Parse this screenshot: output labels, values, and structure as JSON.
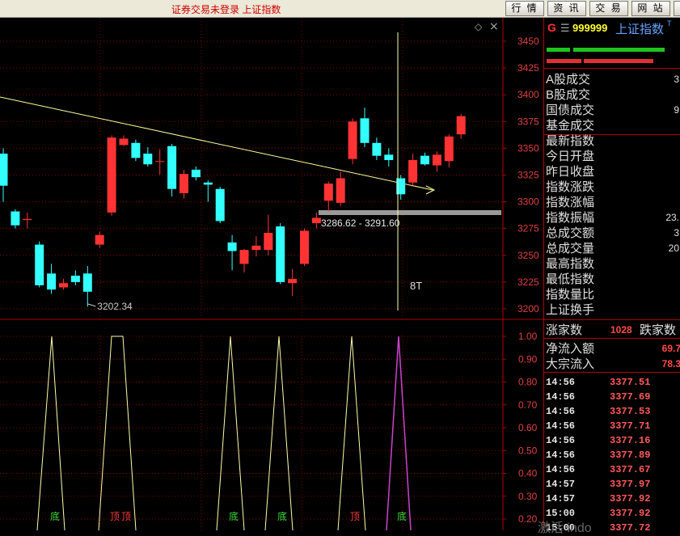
{
  "app": {
    "title": "证券交易未登录  上证指数"
  },
  "toolbar": [
    "行 情",
    "资 讯",
    "交 易",
    "网 站"
  ],
  "chart_icons": {
    "diamond": "◇",
    "close": "×"
  },
  "price_axis": {
    "labels": [
      "3450",
      "3425",
      "3400",
      "3375",
      "3350",
      "3325",
      "3300",
      "3275",
      "3250",
      "3225",
      "3200"
    ]
  },
  "annotations": {
    "low_label": "3202.34",
    "range_label": "3286.62 - 3291.60",
    "day_label": "8T"
  },
  "chart_data": [
    {
      "type": "candlestick",
      "ylim": [
        3190,
        3465
      ],
      "y_ticks": [
        3200,
        3225,
        3250,
        3275,
        3300,
        3325,
        3350,
        3375,
        3400,
        3425,
        3450
      ],
      "candles": [
        {
          "o": 3345,
          "c": 3315,
          "h": 3350,
          "l": 3300,
          "up": false
        },
        {
          "o": 3291,
          "c": 3278,
          "h": 3293,
          "l": 3275,
          "up": false
        },
        {
          "o": 3283,
          "c": 3284,
          "h": 3290,
          "l": 3275,
          "up": true
        },
        {
          "o": 3260,
          "c": 3222,
          "h": 3263,
          "l": 3220,
          "up": false
        },
        {
          "o": 3233,
          "c": 3218,
          "h": 3242,
          "l": 3214,
          "up": false
        },
        {
          "o": 3220,
          "c": 3224,
          "h": 3228,
          "l": 3218,
          "up": true
        },
        {
          "o": 3231,
          "c": 3225,
          "h": 3236,
          "l": 3222,
          "up": false
        },
        {
          "o": 3233,
          "c": 3216,
          "h": 3240,
          "l": 3202,
          "up": false
        },
        {
          "o": 3260,
          "c": 3269,
          "h": 3272,
          "l": 3257,
          "up": true
        },
        {
          "o": 3290,
          "c": 3360,
          "h": 3362,
          "l": 3287,
          "up": true
        },
        {
          "o": 3353,
          "c": 3359,
          "h": 3362,
          "l": 3352,
          "up": true
        },
        {
          "o": 3355,
          "c": 3341,
          "h": 3358,
          "l": 3338,
          "up": false
        },
        {
          "o": 3345,
          "c": 3335,
          "h": 3351,
          "l": 3333,
          "up": false
        },
        {
          "o": 3338,
          "c": 3338,
          "h": 3349,
          "l": 3325,
          "up": true
        },
        {
          "o": 3352,
          "c": 3312,
          "h": 3354,
          "l": 3305,
          "up": false
        },
        {
          "o": 3308,
          "c": 3326,
          "h": 3330,
          "l": 3303,
          "up": true
        },
        {
          "o": 3330,
          "c": 3323,
          "h": 3333,
          "l": 3320,
          "up": false
        },
        {
          "o": 3318,
          "c": 3316,
          "h": 3320,
          "l": 3300,
          "up": false
        },
        {
          "o": 3312,
          "c": 3282,
          "h": 3314,
          "l": 3280,
          "up": false
        },
        {
          "o": 3262,
          "c": 3254,
          "h": 3269,
          "l": 3236,
          "up": false
        },
        {
          "o": 3242,
          "c": 3255,
          "h": 3256,
          "l": 3234,
          "up": true
        },
        {
          "o": 3255,
          "c": 3259,
          "h": 3268,
          "l": 3249,
          "up": true
        },
        {
          "o": 3255,
          "c": 3271,
          "h": 3288,
          "l": 3250,
          "up": true
        },
        {
          "o": 3277,
          "c": 3225,
          "h": 3280,
          "l": 3223,
          "up": false
        },
        {
          "o": 3224,
          "c": 3228,
          "h": 3237,
          "l": 3212,
          "up": true
        },
        {
          "o": 3242,
          "c": 3273,
          "h": 3275,
          "l": 3240,
          "up": true
        },
        {
          "o": 3280,
          "c": 3285,
          "h": 3290,
          "l": 3275,
          "up": true
        },
        {
          "o": 3301,
          "c": 3317,
          "h": 3319,
          "l": 3291,
          "up": true
        },
        {
          "o": 3299,
          "c": 3322,
          "h": 3328,
          "l": 3296,
          "up": true
        },
        {
          "o": 3340,
          "c": 3375,
          "h": 3378,
          "l": 3335,
          "up": true
        },
        {
          "o": 3378,
          "c": 3355,
          "h": 3388,
          "l": 3351,
          "up": false
        },
        {
          "o": 3355,
          "c": 3343,
          "h": 3360,
          "l": 3339,
          "up": false
        },
        {
          "o": 3344,
          "c": 3339,
          "h": 3350,
          "l": 3333,
          "up": false
        },
        {
          "o": 3322,
          "c": 3307,
          "h": 3325,
          "l": 3302,
          "up": false
        },
        {
          "o": 3318,
          "c": 3339,
          "h": 3345,
          "l": 3315,
          "up": true
        },
        {
          "o": 3343,
          "c": 3335,
          "h": 3346,
          "l": 3334,
          "up": false
        },
        {
          "o": 3334,
          "c": 3344,
          "h": 3347,
          "l": 3328,
          "up": true
        },
        {
          "o": 3338,
          "c": 3361,
          "h": 3363,
          "l": 3332,
          "up": true
        },
        {
          "o": 3363,
          "c": 3380,
          "h": 3382,
          "l": 3359,
          "up": true
        }
      ]
    },
    {
      "type": "line",
      "ylim": [
        0,
        1.05
      ],
      "y_ticks": [
        0.2,
        0.3,
        0.4,
        0.5,
        0.6,
        0.7,
        0.8,
        0.9,
        1.0
      ],
      "indicator_points": [
        {
          "x": 46,
          "y": 0
        },
        {
          "x": 64,
          "y": 1.0
        },
        {
          "x": 80,
          "y": 0
        },
        {
          "x": 122,
          "y": 0
        },
        {
          "x": 138,
          "y": 1.0
        },
        {
          "x": 152,
          "y": 1.0
        },
        {
          "x": 168,
          "y": 0
        },
        {
          "x": 268,
          "y": 0
        },
        {
          "x": 285,
          "y": 1.0
        },
        {
          "x": 302,
          "y": 0
        },
        {
          "x": 328,
          "y": 0
        },
        {
          "x": 345,
          "y": 1.0
        },
        {
          "x": 362,
          "y": 0
        },
        {
          "x": 418,
          "y": 0
        },
        {
          "x": 435,
          "y": 1.0
        },
        {
          "x": 452,
          "y": 0
        }
      ],
      "highlight_points": [
        {
          "x": 478,
          "y": 0
        },
        {
          "x": 493,
          "y": 1.0
        },
        {
          "x": 508,
          "y": 0
        }
      ],
      "labels": [
        "底",
        "顶",
        "顶",
        "底",
        "底",
        "顶",
        "底"
      ]
    }
  ],
  "quote": {
    "symbol_prefix": "G",
    "menu_glyph": "☰",
    "code": "999999",
    "name": "上证指数",
    "superscript": "T",
    "colors": {
      "up": "#ff3b3b",
      "down": "#33cc33",
      "accent": "#ffff33"
    },
    "fields": [
      {
        "label": "A股成交",
        "value": "3"
      },
      {
        "label": "B股成交",
        "value": ""
      },
      {
        "label": "国债成交",
        "value": "9"
      },
      {
        "label": "基金成交",
        "value": ""
      },
      {
        "label": "最新指数",
        "value": ""
      },
      {
        "label": "今日开盘",
        "value": ""
      },
      {
        "label": "昨日收盘",
        "value": ""
      },
      {
        "label": "指数涨跌",
        "value": ""
      },
      {
        "label": "指数涨幅",
        "value": ""
      },
      {
        "label": "指数振幅",
        "value": "23."
      },
      {
        "label": "总成交额",
        "value": "3"
      },
      {
        "label": "总成交量",
        "value": "20"
      },
      {
        "label": "最高指数",
        "value": ""
      },
      {
        "label": "最低指数",
        "value": ""
      },
      {
        "label": "指数量比",
        "value": ""
      },
      {
        "label": "上证换手",
        "value": ""
      }
    ],
    "advance": {
      "label": "涨家数",
      "value": "1028",
      "label2": "跌家数"
    },
    "flows": [
      {
        "label": "净流入额",
        "value": "69.7"
      },
      {
        "label": "大宗流入",
        "value": "78.3"
      }
    ],
    "ticks": [
      {
        "time": "14:56",
        "price": "3377.51"
      },
      {
        "time": "14:56",
        "price": "3377.69"
      },
      {
        "time": "14:56",
        "price": "3377.53"
      },
      {
        "time": "14:56",
        "price": "3377.71"
      },
      {
        "time": "14:56",
        "price": "3377.16"
      },
      {
        "time": "14:56",
        "price": "3377.89"
      },
      {
        "time": "14:56",
        "price": "3377.67"
      },
      {
        "time": "14:57",
        "price": "3377.97"
      },
      {
        "time": "14:57",
        "price": "3377.92"
      },
      {
        "time": "15:00",
        "price": "3377.92"
      },
      {
        "time": "15:00",
        "price": "3377.72"
      }
    ],
    "watermark": "激活 indo"
  }
}
